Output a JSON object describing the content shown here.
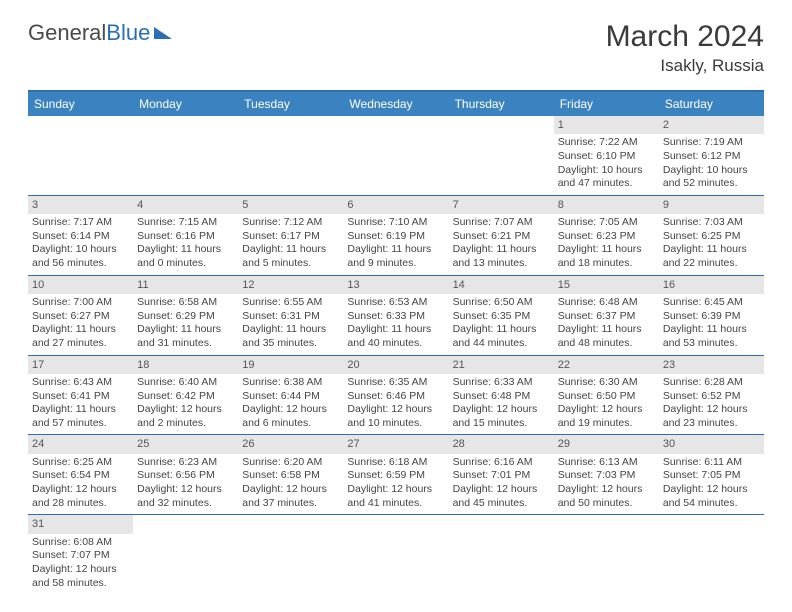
{
  "logo": {
    "text1": "General",
    "text2": "Blue"
  },
  "title": "March 2024",
  "location": "Isakly, Russia",
  "colors": {
    "header_bg": "#3b83c0",
    "border": "#2a6fb5",
    "daynum_bg": "#e6e6e6",
    "text": "#444444"
  },
  "weekdays": [
    "Sunday",
    "Monday",
    "Tuesday",
    "Wednesday",
    "Thursday",
    "Friday",
    "Saturday"
  ],
  "weeks": [
    [
      {
        "n": "",
        "sr": "",
        "ss": "",
        "dl1": "",
        "dl2": ""
      },
      {
        "n": "",
        "sr": "",
        "ss": "",
        "dl1": "",
        "dl2": ""
      },
      {
        "n": "",
        "sr": "",
        "ss": "",
        "dl1": "",
        "dl2": ""
      },
      {
        "n": "",
        "sr": "",
        "ss": "",
        "dl1": "",
        "dl2": ""
      },
      {
        "n": "",
        "sr": "",
        "ss": "",
        "dl1": "",
        "dl2": ""
      },
      {
        "n": "1",
        "sr": "Sunrise: 7:22 AM",
        "ss": "Sunset: 6:10 PM",
        "dl1": "Daylight: 10 hours",
        "dl2": "and 47 minutes."
      },
      {
        "n": "2",
        "sr": "Sunrise: 7:19 AM",
        "ss": "Sunset: 6:12 PM",
        "dl1": "Daylight: 10 hours",
        "dl2": "and 52 minutes."
      }
    ],
    [
      {
        "n": "3",
        "sr": "Sunrise: 7:17 AM",
        "ss": "Sunset: 6:14 PM",
        "dl1": "Daylight: 10 hours",
        "dl2": "and 56 minutes."
      },
      {
        "n": "4",
        "sr": "Sunrise: 7:15 AM",
        "ss": "Sunset: 6:16 PM",
        "dl1": "Daylight: 11 hours",
        "dl2": "and 0 minutes."
      },
      {
        "n": "5",
        "sr": "Sunrise: 7:12 AM",
        "ss": "Sunset: 6:17 PM",
        "dl1": "Daylight: 11 hours",
        "dl2": "and 5 minutes."
      },
      {
        "n": "6",
        "sr": "Sunrise: 7:10 AM",
        "ss": "Sunset: 6:19 PM",
        "dl1": "Daylight: 11 hours",
        "dl2": "and 9 minutes."
      },
      {
        "n": "7",
        "sr": "Sunrise: 7:07 AM",
        "ss": "Sunset: 6:21 PM",
        "dl1": "Daylight: 11 hours",
        "dl2": "and 13 minutes."
      },
      {
        "n": "8",
        "sr": "Sunrise: 7:05 AM",
        "ss": "Sunset: 6:23 PM",
        "dl1": "Daylight: 11 hours",
        "dl2": "and 18 minutes."
      },
      {
        "n": "9",
        "sr": "Sunrise: 7:03 AM",
        "ss": "Sunset: 6:25 PM",
        "dl1": "Daylight: 11 hours",
        "dl2": "and 22 minutes."
      }
    ],
    [
      {
        "n": "10",
        "sr": "Sunrise: 7:00 AM",
        "ss": "Sunset: 6:27 PM",
        "dl1": "Daylight: 11 hours",
        "dl2": "and 27 minutes."
      },
      {
        "n": "11",
        "sr": "Sunrise: 6:58 AM",
        "ss": "Sunset: 6:29 PM",
        "dl1": "Daylight: 11 hours",
        "dl2": "and 31 minutes."
      },
      {
        "n": "12",
        "sr": "Sunrise: 6:55 AM",
        "ss": "Sunset: 6:31 PM",
        "dl1": "Daylight: 11 hours",
        "dl2": "and 35 minutes."
      },
      {
        "n": "13",
        "sr": "Sunrise: 6:53 AM",
        "ss": "Sunset: 6:33 PM",
        "dl1": "Daylight: 11 hours",
        "dl2": "and 40 minutes."
      },
      {
        "n": "14",
        "sr": "Sunrise: 6:50 AM",
        "ss": "Sunset: 6:35 PM",
        "dl1": "Daylight: 11 hours",
        "dl2": "and 44 minutes."
      },
      {
        "n": "15",
        "sr": "Sunrise: 6:48 AM",
        "ss": "Sunset: 6:37 PM",
        "dl1": "Daylight: 11 hours",
        "dl2": "and 48 minutes."
      },
      {
        "n": "16",
        "sr": "Sunrise: 6:45 AM",
        "ss": "Sunset: 6:39 PM",
        "dl1": "Daylight: 11 hours",
        "dl2": "and 53 minutes."
      }
    ],
    [
      {
        "n": "17",
        "sr": "Sunrise: 6:43 AM",
        "ss": "Sunset: 6:41 PM",
        "dl1": "Daylight: 11 hours",
        "dl2": "and 57 minutes."
      },
      {
        "n": "18",
        "sr": "Sunrise: 6:40 AM",
        "ss": "Sunset: 6:42 PM",
        "dl1": "Daylight: 12 hours",
        "dl2": "and 2 minutes."
      },
      {
        "n": "19",
        "sr": "Sunrise: 6:38 AM",
        "ss": "Sunset: 6:44 PM",
        "dl1": "Daylight: 12 hours",
        "dl2": "and 6 minutes."
      },
      {
        "n": "20",
        "sr": "Sunrise: 6:35 AM",
        "ss": "Sunset: 6:46 PM",
        "dl1": "Daylight: 12 hours",
        "dl2": "and 10 minutes."
      },
      {
        "n": "21",
        "sr": "Sunrise: 6:33 AM",
        "ss": "Sunset: 6:48 PM",
        "dl1": "Daylight: 12 hours",
        "dl2": "and 15 minutes."
      },
      {
        "n": "22",
        "sr": "Sunrise: 6:30 AM",
        "ss": "Sunset: 6:50 PM",
        "dl1": "Daylight: 12 hours",
        "dl2": "and 19 minutes."
      },
      {
        "n": "23",
        "sr": "Sunrise: 6:28 AM",
        "ss": "Sunset: 6:52 PM",
        "dl1": "Daylight: 12 hours",
        "dl2": "and 23 minutes."
      }
    ],
    [
      {
        "n": "24",
        "sr": "Sunrise: 6:25 AM",
        "ss": "Sunset: 6:54 PM",
        "dl1": "Daylight: 12 hours",
        "dl2": "and 28 minutes."
      },
      {
        "n": "25",
        "sr": "Sunrise: 6:23 AM",
        "ss": "Sunset: 6:56 PM",
        "dl1": "Daylight: 12 hours",
        "dl2": "and 32 minutes."
      },
      {
        "n": "26",
        "sr": "Sunrise: 6:20 AM",
        "ss": "Sunset: 6:58 PM",
        "dl1": "Daylight: 12 hours",
        "dl2": "and 37 minutes."
      },
      {
        "n": "27",
        "sr": "Sunrise: 6:18 AM",
        "ss": "Sunset: 6:59 PM",
        "dl1": "Daylight: 12 hours",
        "dl2": "and 41 minutes."
      },
      {
        "n": "28",
        "sr": "Sunrise: 6:16 AM",
        "ss": "Sunset: 7:01 PM",
        "dl1": "Daylight: 12 hours",
        "dl2": "and 45 minutes."
      },
      {
        "n": "29",
        "sr": "Sunrise: 6:13 AM",
        "ss": "Sunset: 7:03 PM",
        "dl1": "Daylight: 12 hours",
        "dl2": "and 50 minutes."
      },
      {
        "n": "30",
        "sr": "Sunrise: 6:11 AM",
        "ss": "Sunset: 7:05 PM",
        "dl1": "Daylight: 12 hours",
        "dl2": "and 54 minutes."
      }
    ],
    [
      {
        "n": "31",
        "sr": "Sunrise: 6:08 AM",
        "ss": "Sunset: 7:07 PM",
        "dl1": "Daylight: 12 hours",
        "dl2": "and 58 minutes."
      },
      {
        "n": "",
        "sr": "",
        "ss": "",
        "dl1": "",
        "dl2": ""
      },
      {
        "n": "",
        "sr": "",
        "ss": "",
        "dl1": "",
        "dl2": ""
      },
      {
        "n": "",
        "sr": "",
        "ss": "",
        "dl1": "",
        "dl2": ""
      },
      {
        "n": "",
        "sr": "",
        "ss": "",
        "dl1": "",
        "dl2": ""
      },
      {
        "n": "",
        "sr": "",
        "ss": "",
        "dl1": "",
        "dl2": ""
      },
      {
        "n": "",
        "sr": "",
        "ss": "",
        "dl1": "",
        "dl2": ""
      }
    ]
  ]
}
